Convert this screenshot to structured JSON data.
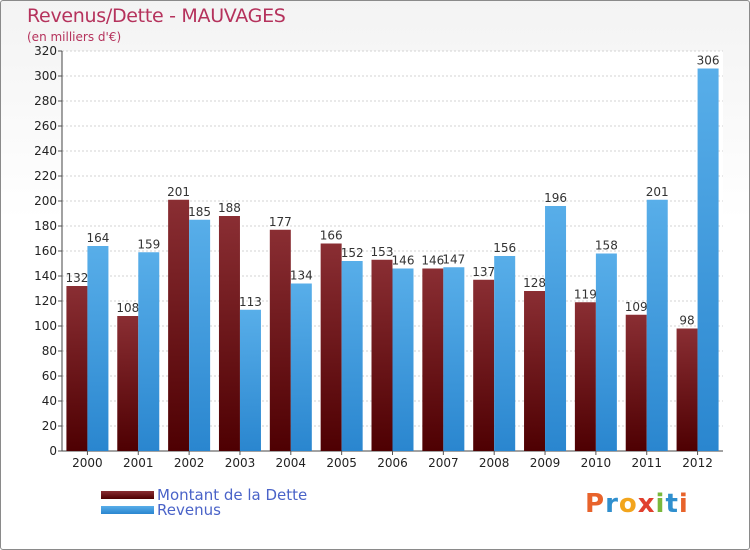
{
  "chart_data": {
    "type": "bar",
    "title": "Revenus/Dette - MAUVAGES",
    "subtitle": "(en milliers d'€)",
    "categories": [
      "2000",
      "2001",
      "2002",
      "2003",
      "2004",
      "2005",
      "2006",
      "2007",
      "2008",
      "2009",
      "2010",
      "2011",
      "2012"
    ],
    "series": [
      {
        "name": "Montant de la Dette",
        "color": "#6e0a0c",
        "values": [
          132,
          108,
          201,
          188,
          177,
          166,
          153,
          146,
          137,
          128,
          119,
          109,
          98
        ]
      },
      {
        "name": "Revenus",
        "color": "#3d9be3",
        "values": [
          164,
          159,
          185,
          113,
          134,
          152,
          146,
          147,
          156,
          196,
          158,
          201,
          306
        ]
      }
    ],
    "ylim": [
      0,
      320
    ],
    "ytick_step": 20,
    "grid": true,
    "legend_position": "bottom-left"
  },
  "brand": {
    "letters": [
      "P",
      "r",
      "o",
      "x",
      "i",
      "t",
      "i"
    ],
    "colors": [
      "#e8632b",
      "#2f8fce",
      "#f2a51d",
      "#e03f2e",
      "#7ab83c",
      "#2f8fce",
      "#e8632b"
    ]
  }
}
